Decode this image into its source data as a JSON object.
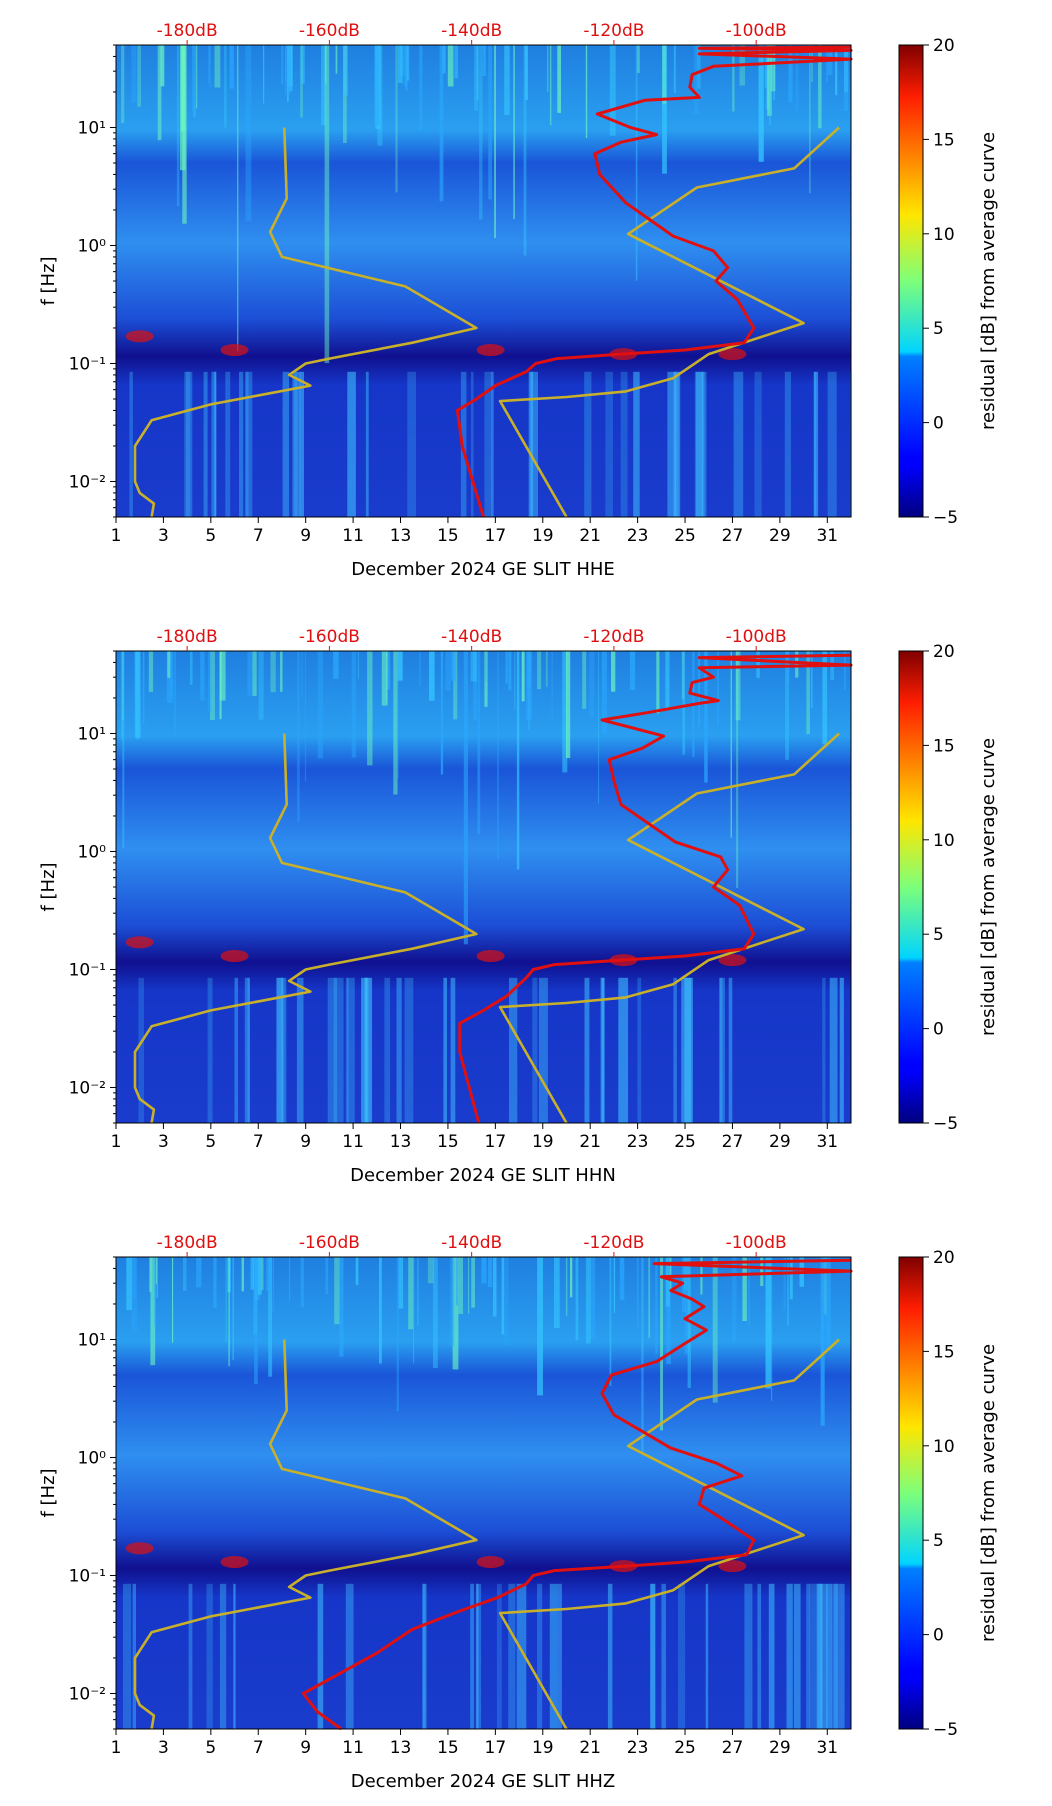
{
  "chart_data": [
    {
      "type": "heatmap",
      "title": "",
      "xlabel": "December 2024 GE SLIT  HHE",
      "ylabel": "f [Hz]",
      "x_ticks": [
        "1",
        "3",
        "5",
        "7",
        "9",
        "11",
        "13",
        "15",
        "17",
        "19",
        "21",
        "23",
        "25",
        "27",
        "29",
        "31"
      ],
      "y_ticks": [
        "10⁻²",
        "10⁻¹",
        "10⁰",
        "10¹"
      ],
      "top_ticks": [
        "-180dB",
        "-160dB",
        "-140dB",
        "-120dB",
        "-100dB"
      ],
      "colorbar": {
        "label": "residual [dB] from average curve",
        "range": [
          -5,
          20
        ],
        "ticks": [
          "−5",
          "0",
          "5",
          "10",
          "15",
          "20"
        ]
      },
      "xlim": [
        1,
        32
      ],
      "ylim": [
        0.005,
        50
      ],
      "series": [
        {
          "name": "model curve",
          "color": "#c8b02a",
          "points": [
            [
              2.5,
              0.005
            ],
            [
              2.6,
              0.0065
            ],
            [
              2,
              0.008
            ],
            [
              1.8,
              0.01
            ],
            [
              1.8,
              0.02
            ],
            [
              2.5,
              0.033
            ],
            [
              5,
              0.045
            ],
            [
              9.2,
              0.065
            ],
            [
              8.3,
              0.08
            ],
            [
              9,
              0.1
            ],
            [
              10,
              0.11
            ],
            [
              13.5,
              0.15
            ],
            [
              16.2,
              0.2
            ],
            [
              13.2,
              0.45
            ],
            [
              8,
              0.8
            ],
            [
              7.5,
              1.3
            ],
            [
              8.2,
              2.5
            ],
            [
              8.1,
              10
            ]
          ]
        },
        {
          "name": "model curve (high)",
          "color": "#c8b02a",
          "points": [
            [
              20,
              0.005
            ],
            [
              17.2,
              0.048
            ],
            [
              20,
              0.052
            ],
            [
              22.5,
              0.058
            ],
            [
              24.5,
              0.075
            ],
            [
              26,
              0.12
            ],
            [
              30,
              0.22
            ],
            [
              22.6,
              1.25
            ],
            [
              25.5,
              3.1
            ],
            [
              29.6,
              4.5
            ],
            [
              31.5,
              10
            ]
          ]
        },
        {
          "name": "average curve",
          "color": "#e01010",
          "points": [
            [
              16.5,
              0.005
            ],
            [
              15.6,
              0.02
            ],
            [
              15.4,
              0.04
            ],
            [
              16.2,
              0.05
            ],
            [
              17,
              0.065
            ],
            [
              18.3,
              0.085
            ],
            [
              18.7,
              0.1
            ],
            [
              19.6,
              0.11
            ],
            [
              22.3,
              0.12
            ],
            [
              25,
              0.13
            ],
            [
              27.5,
              0.15
            ],
            [
              27.9,
              0.2
            ],
            [
              27.2,
              0.35
            ],
            [
              26.3,
              0.5
            ],
            [
              26.8,
              0.65
            ],
            [
              26.2,
              0.9
            ],
            [
              24.5,
              1.2
            ],
            [
              22.5,
              2.3
            ],
            [
              21.4,
              4
            ],
            [
              21.2,
              6
            ],
            [
              22.3,
              7.5
            ],
            [
              23.8,
              8.7
            ],
            [
              22.7,
              10
            ],
            [
              21.3,
              13
            ],
            [
              23.3,
              17
            ],
            [
              25.6,
              18
            ],
            [
              25.2,
              22
            ],
            [
              25.3,
              28
            ],
            [
              26.2,
              33
            ],
            [
              32,
              38
            ],
            [
              25.6,
              42
            ],
            [
              32,
              45
            ],
            [
              25.6,
              47
            ],
            [
              32,
              48
            ]
          ]
        }
      ]
    },
    {
      "type": "heatmap",
      "title": "",
      "xlabel": "December 2024 GE SLIT  HHN",
      "ylabel": "f [Hz]",
      "x_ticks": [
        "1",
        "3",
        "5",
        "7",
        "9",
        "11",
        "13",
        "15",
        "17",
        "19",
        "21",
        "23",
        "25",
        "27",
        "29",
        "31"
      ],
      "y_ticks": [
        "10⁻²",
        "10⁻¹",
        "10⁰",
        "10¹"
      ],
      "top_ticks": [
        "-180dB",
        "-160dB",
        "-140dB",
        "-120dB",
        "-100dB"
      ],
      "colorbar": {
        "label": "residual [dB] from average curve",
        "range": [
          -5,
          20
        ],
        "ticks": [
          "−5",
          "0",
          "5",
          "10",
          "15",
          "20"
        ]
      },
      "xlim": [
        1,
        32
      ],
      "ylim": [
        0.005,
        50
      ],
      "series": [
        {
          "name": "model curve",
          "color": "#c8b02a",
          "points": [
            [
              2.5,
              0.005
            ],
            [
              2.6,
              0.0065
            ],
            [
              2,
              0.008
            ],
            [
              1.8,
              0.01
            ],
            [
              1.8,
              0.02
            ],
            [
              2.5,
              0.033
            ],
            [
              5,
              0.045
            ],
            [
              9.2,
              0.065
            ],
            [
              8.3,
              0.08
            ],
            [
              9,
              0.1
            ],
            [
              10,
              0.11
            ],
            [
              13.5,
              0.15
            ],
            [
              16.2,
              0.2
            ],
            [
              13.2,
              0.45
            ],
            [
              8,
              0.8
            ],
            [
              7.5,
              1.3
            ],
            [
              8.2,
              2.5
            ],
            [
              8.1,
              10
            ]
          ]
        },
        {
          "name": "model curve (high)",
          "color": "#c8b02a",
          "points": [
            [
              20,
              0.005
            ],
            [
              17.2,
              0.048
            ],
            [
              20,
              0.052
            ],
            [
              22.5,
              0.058
            ],
            [
              24.5,
              0.075
            ],
            [
              26,
              0.12
            ],
            [
              30,
              0.22
            ],
            [
              22.6,
              1.25
            ],
            [
              25.5,
              3.1
            ],
            [
              29.6,
              4.5
            ],
            [
              31.5,
              10
            ]
          ]
        },
        {
          "name": "average curve",
          "color": "#e01010",
          "points": [
            [
              16.3,
              0.005
            ],
            [
              15.5,
              0.02
            ],
            [
              15.5,
              0.035
            ],
            [
              16.5,
              0.045
            ],
            [
              17.5,
              0.06
            ],
            [
              18.3,
              0.085
            ],
            [
              18.6,
              0.1
            ],
            [
              19.5,
              0.11
            ],
            [
              22.3,
              0.12
            ],
            [
              25,
              0.13
            ],
            [
              27.5,
              0.15
            ],
            [
              27.9,
              0.2
            ],
            [
              27.3,
              0.35
            ],
            [
              26.2,
              0.5
            ],
            [
              26.8,
              0.7
            ],
            [
              26.5,
              0.9
            ],
            [
              24.6,
              1.2
            ],
            [
              22.3,
              2.5
            ],
            [
              22,
              4
            ],
            [
              21.8,
              6
            ],
            [
              23.2,
              7.5
            ],
            [
              24.1,
              9.5
            ],
            [
              22.9,
              11
            ],
            [
              21.5,
              13
            ],
            [
              23.4,
              15
            ],
            [
              25.6,
              18
            ],
            [
              26.4,
              19
            ],
            [
              25.2,
              22
            ],
            [
              25.3,
              27
            ],
            [
              26.2,
              30
            ],
            [
              25.6,
              36
            ],
            [
              32,
              38
            ],
            [
              25.6,
              44
            ],
            [
              32,
              46
            ]
          ]
        }
      ]
    },
    {
      "type": "heatmap",
      "title": "",
      "xlabel": "December 2024 GE SLIT  HHZ",
      "ylabel": "f [Hz]",
      "x_ticks": [
        "1",
        "3",
        "5",
        "7",
        "9",
        "11",
        "13",
        "15",
        "17",
        "19",
        "21",
        "23",
        "25",
        "27",
        "29",
        "31"
      ],
      "y_ticks": [
        "10⁻²",
        "10⁻¹",
        "10⁰",
        "10¹"
      ],
      "top_ticks": [
        "-180dB",
        "-160dB",
        "-140dB",
        "-120dB",
        "-100dB"
      ],
      "colorbar": {
        "label": "residual [dB] from average curve",
        "range": [
          -5,
          20
        ],
        "ticks": [
          "−5",
          "0",
          "5",
          "10",
          "15",
          "20"
        ]
      },
      "xlim": [
        1,
        32
      ],
      "ylim": [
        0.005,
        50
      ],
      "series": [
        {
          "name": "model curve",
          "color": "#c8b02a",
          "points": [
            [
              2.5,
              0.005
            ],
            [
              2.6,
              0.0065
            ],
            [
              2,
              0.008
            ],
            [
              1.8,
              0.01
            ],
            [
              1.8,
              0.02
            ],
            [
              2.5,
              0.033
            ],
            [
              5,
              0.045
            ],
            [
              9.2,
              0.065
            ],
            [
              8.3,
              0.08
            ],
            [
              9,
              0.1
            ],
            [
              10,
              0.11
            ],
            [
              13.5,
              0.15
            ],
            [
              16.2,
              0.2
            ],
            [
              13.2,
              0.45
            ],
            [
              8,
              0.8
            ],
            [
              7.5,
              1.3
            ],
            [
              8.2,
              2.5
            ],
            [
              8.1,
              10
            ]
          ]
        },
        {
          "name": "model curve (high)",
          "color": "#c8b02a",
          "points": [
            [
              20,
              0.005
            ],
            [
              17.2,
              0.048
            ],
            [
              20,
              0.052
            ],
            [
              22.5,
              0.058
            ],
            [
              24.5,
              0.075
            ],
            [
              26,
              0.12
            ],
            [
              30,
              0.22
            ],
            [
              22.6,
              1.25
            ],
            [
              25.5,
              3.1
            ],
            [
              29.6,
              4.5
            ],
            [
              31.5,
              10
            ]
          ]
        },
        {
          "name": "average curve",
          "color": "#e01010",
          "points": [
            [
              10.5,
              0.005
            ],
            [
              9.5,
              0.007
            ],
            [
              8.9,
              0.01
            ],
            [
              10.5,
              0.015
            ],
            [
              12,
              0.022
            ],
            [
              13.5,
              0.035
            ],
            [
              15.5,
              0.05
            ],
            [
              17.1,
              0.065
            ],
            [
              18.3,
              0.085
            ],
            [
              18.6,
              0.1
            ],
            [
              19.5,
              0.11
            ],
            [
              22.5,
              0.12
            ],
            [
              25,
              0.13
            ],
            [
              27.6,
              0.15
            ],
            [
              27.9,
              0.2
            ],
            [
              26.6,
              0.3
            ],
            [
              25.6,
              0.4
            ],
            [
              25.8,
              0.55
            ],
            [
              27.4,
              0.7
            ],
            [
              26.3,
              0.9
            ],
            [
              24.4,
              1.2
            ],
            [
              22,
              2.3
            ],
            [
              21.5,
              3.5
            ],
            [
              21.9,
              5
            ],
            [
              23.8,
              6.5
            ],
            [
              24.9,
              9
            ],
            [
              25.9,
              12
            ],
            [
              25,
              15
            ],
            [
              25.8,
              19
            ],
            [
              25.3,
              22
            ],
            [
              24.4,
              26
            ],
            [
              24.9,
              30
            ],
            [
              24,
              34
            ],
            [
              32,
              38
            ],
            [
              23.7,
              44
            ],
            [
              32,
              47
            ]
          ]
        }
      ]
    }
  ]
}
